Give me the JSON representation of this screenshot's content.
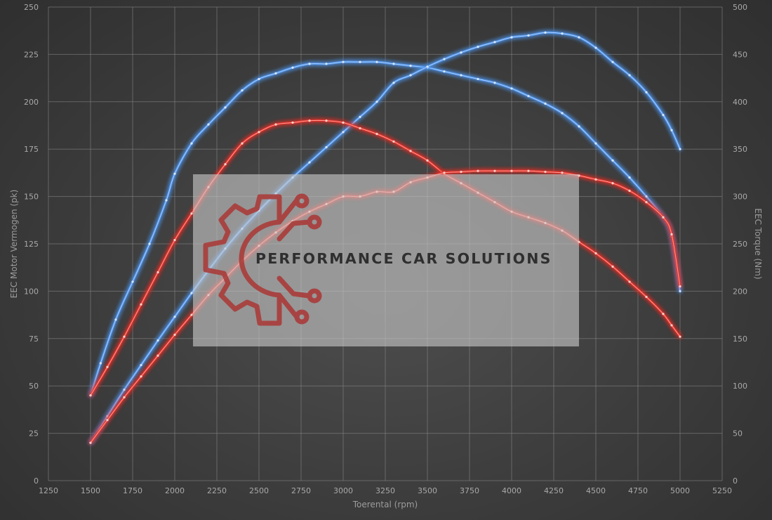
{
  "chart_data": {
    "type": "line",
    "title": "",
    "xlabel": "Toerental (rpm)",
    "ylabel_left": "EEC Motor Vermogen (pk)",
    "ylabel_right": "EEC Torque (Nm)",
    "xlim": [
      1250,
      5250
    ],
    "x_ticks": [
      1250,
      1500,
      1750,
      2000,
      2250,
      2500,
      2750,
      3000,
      3250,
      3500,
      3750,
      4000,
      4250,
      4500,
      4750,
      5000,
      5250
    ],
    "ylim_left": [
      0,
      250
    ],
    "y_ticks_left": [
      0,
      25,
      50,
      75,
      100,
      125,
      150,
      175,
      200,
      225,
      250
    ],
    "ylim_right": [
      0,
      500
    ],
    "y_ticks_right": [
      0,
      50,
      100,
      150,
      200,
      250,
      300,
      350,
      400,
      450,
      500
    ],
    "grid": true,
    "colors": {
      "tuned": "#4f93e8",
      "stock": "#e3302a"
    },
    "series": [
      {
        "id": "tuned-power",
        "color": "#4f93e8",
        "axis": "left",
        "x": [
          1500,
          1560,
          1650,
          1750,
          1850,
          1950,
          2000,
          2100,
          2200,
          2300,
          2400,
          2500,
          2600,
          2700,
          2800,
          2900,
          3000,
          3100,
          3200,
          3300,
          3400,
          3500,
          3600,
          3700,
          3800,
          3900,
          4000,
          4100,
          4200,
          4300,
          4400,
          4500,
          4600,
          4700,
          4800,
          4900,
          4950,
          5000
        ],
        "y": [
          45,
          62,
          85,
          105,
          125,
          148,
          162,
          178,
          188,
          197,
          206,
          212,
          215,
          218,
          220,
          220,
          221,
          221,
          221,
          220,
          219,
          218,
          216,
          214,
          212,
          210,
          207,
          203,
          199,
          194,
          187,
          178,
          169,
          160,
          150,
          139,
          129,
          100
        ]
      },
      {
        "id": "tuned-torque",
        "color": "#4f93e8",
        "axis": "right",
        "x": [
          1500,
          1600,
          1700,
          1800,
          1900,
          2000,
          2100,
          2200,
          2300,
          2400,
          2500,
          2600,
          2700,
          2800,
          2900,
          3000,
          3100,
          3200,
          3300,
          3400,
          3500,
          3600,
          3700,
          3800,
          3900,
          4000,
          4100,
          4200,
          4300,
          4400,
          4500,
          4600,
          4700,
          4800,
          4900,
          4950,
          5000
        ],
        "y": [
          40,
          68,
          96,
          122,
          148,
          173,
          198,
          222,
          245,
          266,
          285,
          303,
          320,
          336,
          352,
          368,
          384,
          400,
          420,
          428,
          437,
          445,
          452,
          458,
          463,
          468,
          470,
          473,
          472,
          468,
          457,
          442,
          428,
          410,
          386,
          370,
          350
        ]
      },
      {
        "id": "stock-power",
        "color": "#e3302a",
        "axis": "left",
        "x": [
          1500,
          1600,
          1700,
          1800,
          1900,
          2000,
          2100,
          2200,
          2300,
          2400,
          2500,
          2600,
          2700,
          2800,
          2900,
          3000,
          3100,
          3200,
          3300,
          3400,
          3500,
          3600,
          3700,
          3800,
          3900,
          4000,
          4100,
          4200,
          4300,
          4400,
          4500,
          4600,
          4700,
          4800,
          4900,
          4950,
          5000
        ],
        "y": [
          45,
          60,
          76,
          93,
          110,
          127,
          141,
          155,
          167,
          178,
          184,
          188,
          189,
          190,
          190,
          189,
          186,
          183,
          179,
          174,
          169,
          162,
          157,
          152,
          147,
          142,
          139,
          136,
          132,
          126,
          120,
          113,
          105,
          97,
          88,
          82,
          76
        ]
      },
      {
        "id": "stock-torque",
        "color": "#e3302a",
        "axis": "right",
        "x": [
          1500,
          1600,
          1700,
          1800,
          1900,
          2000,
          2100,
          2200,
          2300,
          2400,
          2500,
          2600,
          2700,
          2800,
          2900,
          3000,
          3100,
          3200,
          3300,
          3400,
          3500,
          3600,
          3700,
          3800,
          3900,
          4000,
          4100,
          4200,
          4300,
          4400,
          4500,
          4600,
          4700,
          4800,
          4900,
          4950,
          5000
        ],
        "y": [
          40,
          64,
          88,
          110,
          132,
          154,
          175,
          196,
          214,
          232,
          248,
          262,
          274,
          284,
          292,
          300,
          300,
          305,
          305,
          315,
          320,
          325,
          326,
          327,
          327,
          327,
          327,
          326,
          325,
          322,
          318,
          314,
          306,
          294,
          278,
          260,
          205
        ]
      }
    ]
  },
  "overlay": {
    "logo_text": "PERFORMANCE CAR SOLUTIONS",
    "logo_color": "#a93c3a"
  }
}
